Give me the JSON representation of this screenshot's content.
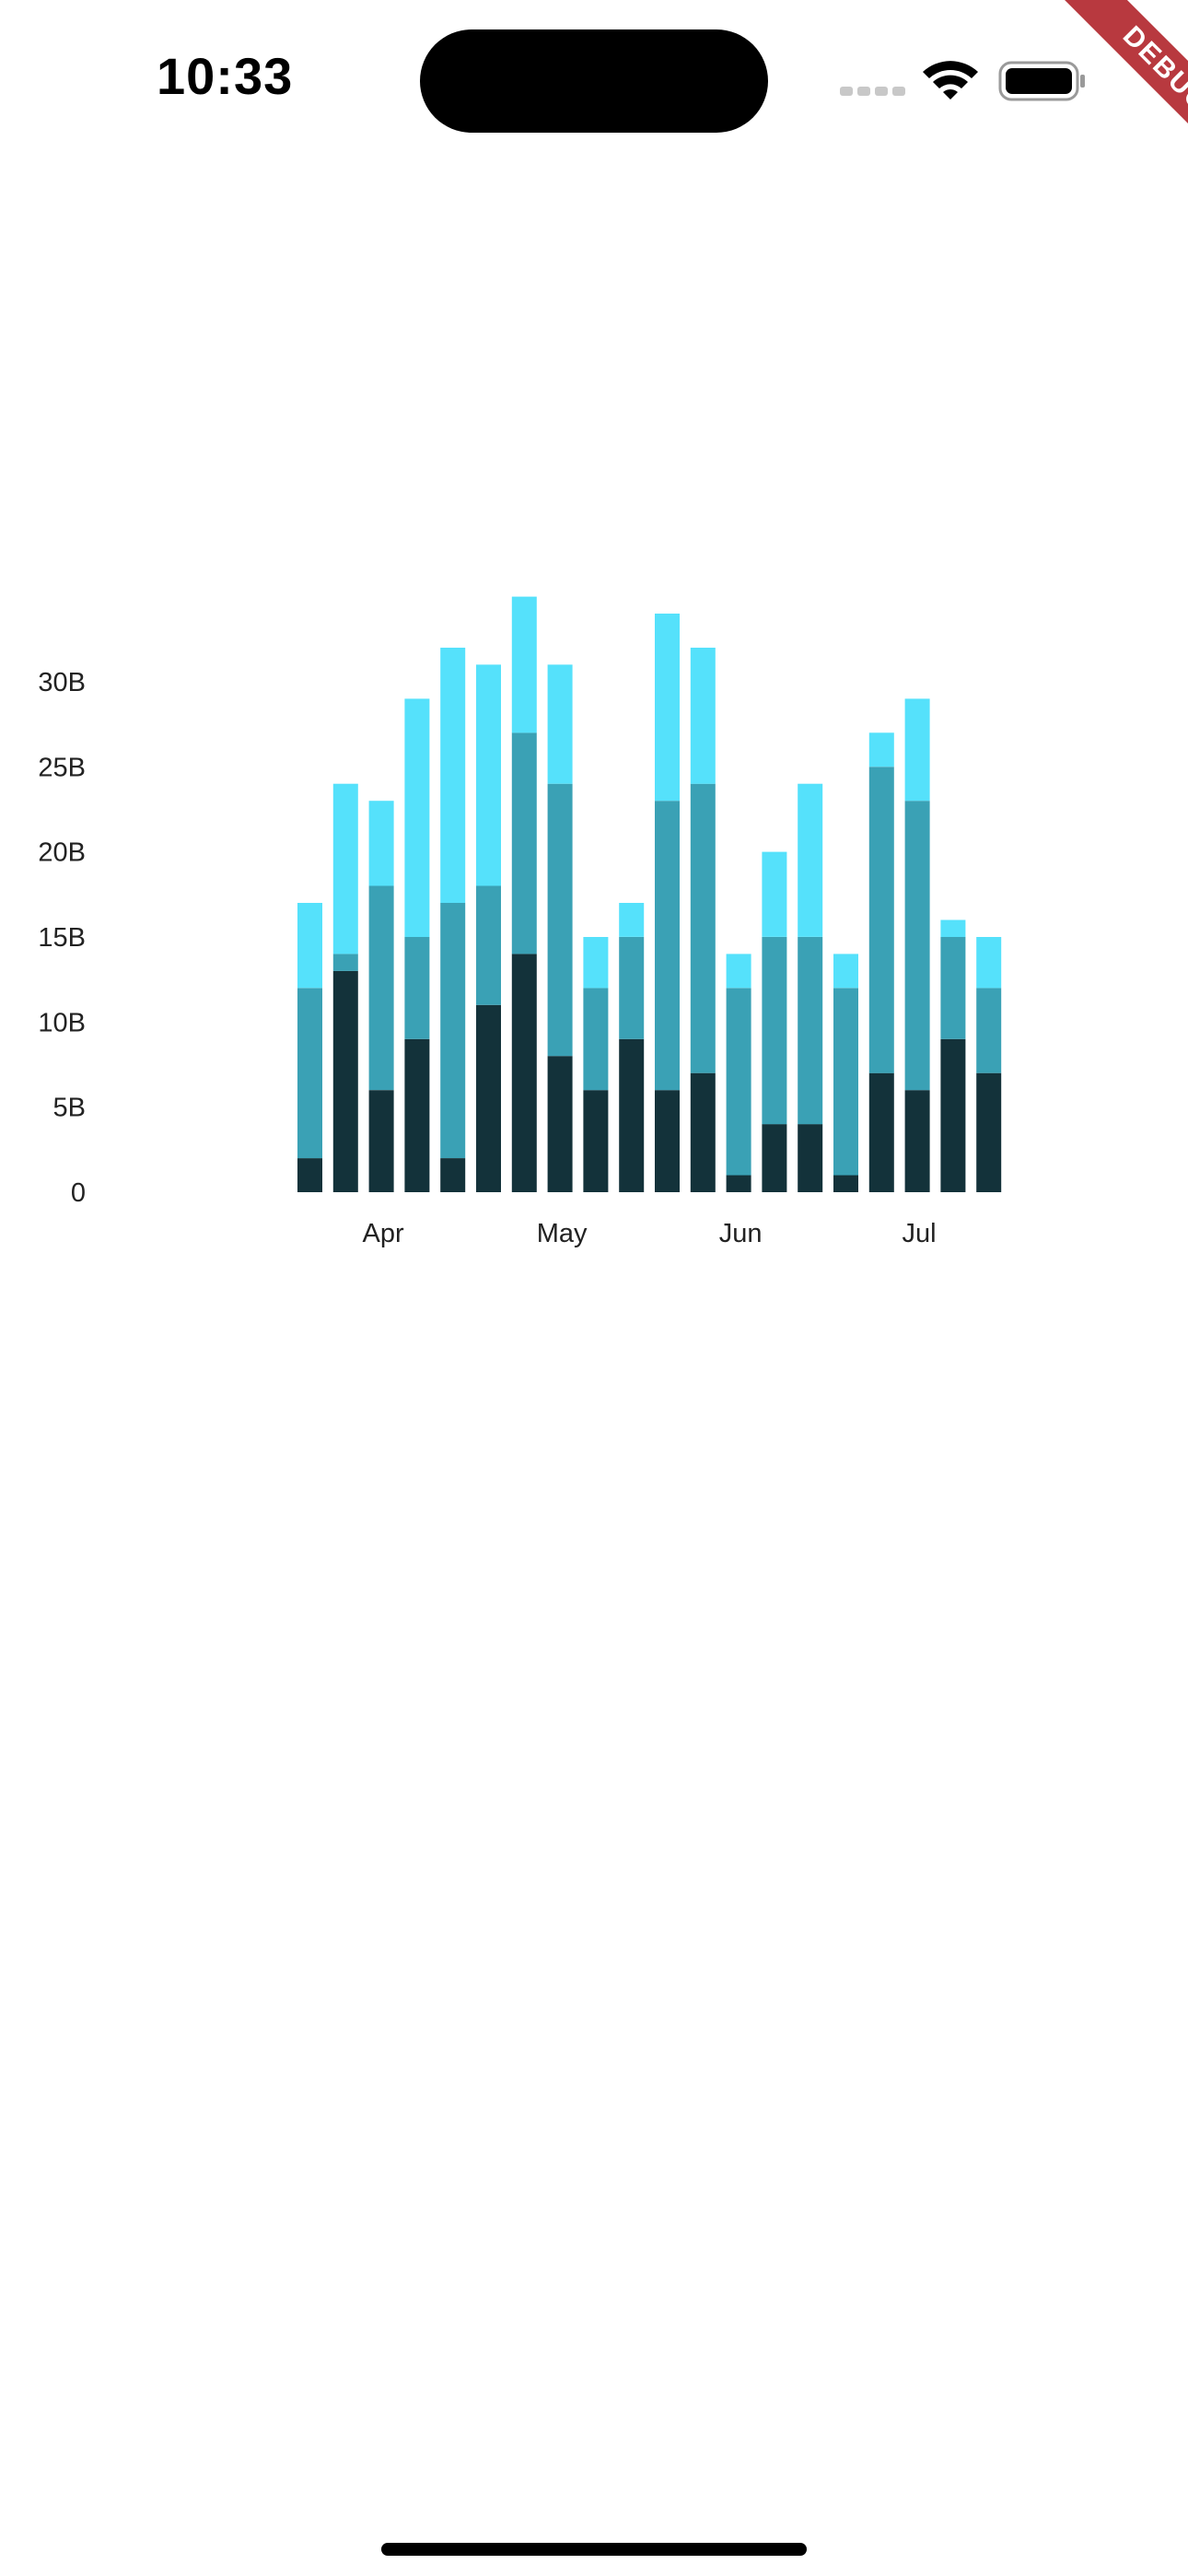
{
  "status_bar": {
    "time": "10:33",
    "icons": [
      "signal-icon",
      "wifi-icon",
      "battery-icon"
    ]
  },
  "debug_banner": {
    "label": "DEBUG",
    "color": "#b8393f"
  },
  "chart_data": {
    "type": "bar",
    "stacked": true,
    "title": "",
    "xlabel": "",
    "ylabel": "",
    "ylim": [
      0,
      35
    ],
    "y_ticks": [
      {
        "value": 0,
        "label": "0"
      },
      {
        "value": 5,
        "label": "5B"
      },
      {
        "value": 10,
        "label": "10B"
      },
      {
        "value": 15,
        "label": "15B"
      },
      {
        "value": 20,
        "label": "20B"
      },
      {
        "value": 25,
        "label": "25B"
      },
      {
        "value": 30,
        "label": "30B"
      }
    ],
    "x_ticks": [
      {
        "label": "Apr",
        "bar_index": 2
      },
      {
        "label": "May",
        "bar_index": 7
      },
      {
        "label": "Jun",
        "bar_index": 12
      },
      {
        "label": "Jul",
        "bar_index": 17
      }
    ],
    "grid": false,
    "legend": "none",
    "colors": [
      "#13323a",
      "#3aa1b5",
      "#55e1fb"
    ],
    "series": [
      {
        "values": [
          2,
          13,
          6,
          9,
          2,
          11,
          14,
          8,
          6,
          9,
          6,
          7,
          1,
          4,
          4,
          1,
          7,
          6,
          9,
          7
        ]
      },
      {
        "values": [
          10,
          1,
          12,
          6,
          15,
          7,
          13,
          16,
          6,
          6,
          17,
          17,
          11,
          11,
          11,
          11,
          18,
          17,
          6,
          5
        ]
      },
      {
        "values": [
          5,
          10,
          5,
          14,
          15,
          13,
          8,
          7,
          3,
          2,
          11,
          8,
          2,
          5,
          9,
          2,
          2,
          6,
          1,
          3
        ]
      }
    ]
  }
}
